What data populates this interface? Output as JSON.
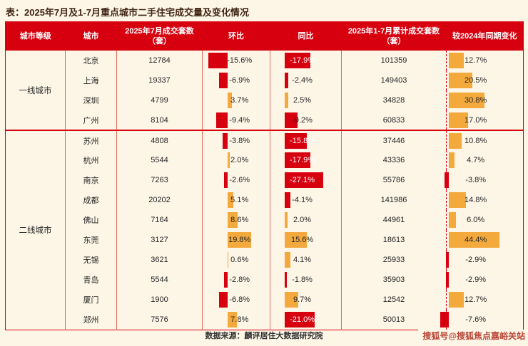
{
  "title": "表：2025年7月及1-7月重点城市二手住宅成交量及变化情况",
  "chart_data": {
    "type": "table",
    "title": "2025年7月及1-7月重点城市二手住宅成交量及变化情况",
    "columns": [
      "城市等级",
      "城市",
      "2025年7月成交套数（套）",
      "环比",
      "同比",
      "2025年1-7月累计成交套数（套）",
      "较2024年同期变化"
    ],
    "groups": [
      {
        "tier": "一线城市",
        "rows": [
          {
            "city": "北京",
            "values": [
              12784,
              -15.6,
              -17.9,
              101359,
              12.7
            ]
          },
          {
            "city": "上海",
            "values": [
              19337,
              -6.9,
              -2.4,
              149403,
              20.5
            ]
          },
          {
            "city": "深圳",
            "values": [
              4799,
              3.7,
              2.5,
              34828,
              30.8
            ]
          },
          {
            "city": "广州",
            "values": [
              8104,
              -9.4,
              -9.2,
              60833,
              17.0
            ]
          }
        ]
      },
      {
        "tier": "二线城市",
        "rows": [
          {
            "city": "苏州",
            "values": [
              4808,
              -3.8,
              -15.8,
              37446,
              10.8
            ]
          },
          {
            "city": "杭州",
            "values": [
              5544,
              2.0,
              -17.9,
              43336,
              4.7
            ]
          },
          {
            "city": "南京",
            "values": [
              7263,
              -2.6,
              -27.1,
              55786,
              -3.8
            ]
          },
          {
            "city": "成都",
            "values": [
              20202,
              5.1,
              -4.1,
              141986,
              14.8
            ]
          },
          {
            "city": "佛山",
            "values": [
              7164,
              8.6,
              2.0,
              44961,
              6.0
            ]
          },
          {
            "city": "东莞",
            "values": [
              3127,
              19.8,
              15.6,
              18613,
              44.4
            ]
          },
          {
            "city": "无锡",
            "values": [
              3621,
              0.6,
              4.1,
              25933,
              -2.9
            ]
          },
          {
            "city": "青岛",
            "values": [
              5544,
              -2.8,
              -1.8,
              35903,
              -2.9
            ]
          },
          {
            "city": "厦门",
            "values": [
              1900,
              -6.8,
              9.7,
              12542,
              12.7
            ]
          },
          {
            "city": "郑州",
            "values": [
              7576,
              7.8,
              -21.0,
              50013,
              -7.6
            ]
          }
        ]
      }
    ],
    "bar_colors": {
      "positive": "#f3a93c",
      "negative": "#d7000f"
    },
    "legend_position": "none",
    "grid": false
  },
  "footer": {
    "source": "数据来源：麟评居住大数据研究院",
    "watermark": "搜狐号@搜狐焦点嘉峪关站"
  },
  "colors": {
    "header_red": "#d7000f",
    "bar_orange": "#f3a93c",
    "background": "#fdf6e7",
    "grid_line": "#e0695c"
  }
}
